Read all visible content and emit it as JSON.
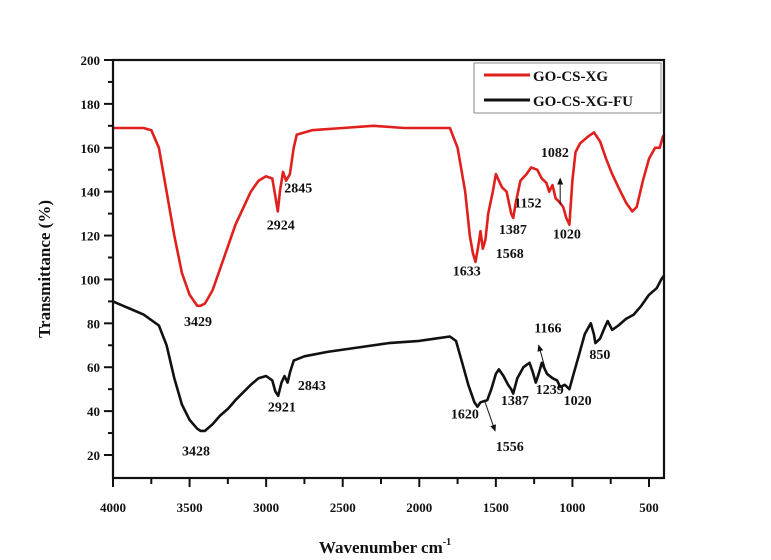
{
  "chart_data": {
    "type": "line",
    "title": "",
    "xlabel": "Wavenumber cm",
    "xlabel_superscript": "-1",
    "ylabel": "Transmittance (%)",
    "xlim": [
      4000,
      400
    ],
    "ylim": [
      10,
      200
    ],
    "x_ticks": [
      4000,
      3500,
      3000,
      2500,
      2000,
      1500,
      1000,
      500
    ],
    "y_ticks": [
      20,
      40,
      60,
      80,
      100,
      120,
      140,
      160,
      180,
      200
    ],
    "grid": false,
    "legend_position": "top-right",
    "series": [
      {
        "name": "GO-CS-XG",
        "color": "#e0201c",
        "x": [
          4000,
          3800,
          3750,
          3700,
          3650,
          3600,
          3550,
          3500,
          3450,
          3429,
          3400,
          3350,
          3300,
          3200,
          3100,
          3050,
          3000,
          2960,
          2940,
          2924,
          2910,
          2890,
          2870,
          2845,
          2820,
          2800,
          2700,
          2500,
          2300,
          2100,
          1900,
          1800,
          1750,
          1700,
          1670,
          1650,
          1633,
          1615,
          1600,
          1585,
          1568,
          1550,
          1520,
          1500,
          1480,
          1460,
          1430,
          1400,
          1387,
          1370,
          1340,
          1300,
          1270,
          1230,
          1200,
          1170,
          1152,
          1130,
          1110,
          1082,
          1060,
          1040,
          1020,
          1000,
          980,
          950,
          900,
          860,
          820,
          780,
          740,
          700,
          650,
          610,
          580,
          540,
          500,
          460,
          430,
          410,
          400
        ],
        "y": [
          169,
          169,
          168,
          160,
          140,
          120,
          103,
          93,
          88,
          88,
          89,
          95,
          105,
          125,
          140,
          145,
          147,
          146,
          138,
          131,
          140,
          149,
          145,
          148,
          160,
          166,
          168,
          169,
          170,
          169,
          169,
          169,
          160,
          140,
          120,
          112,
          108,
          115,
          122,
          114,
          118,
          130,
          140,
          148,
          145,
          142,
          140,
          130,
          128,
          135,
          145,
          148,
          151,
          150,
          146,
          144,
          140,
          143,
          137,
          135,
          133,
          128,
          125,
          145,
          158,
          162,
          165,
          167,
          163,
          155,
          148,
          142,
          135,
          131,
          133,
          145,
          155,
          160,
          160,
          165,
          166
        ]
      },
      {
        "name": "GO-CS-XG-FU",
        "color": "#111111",
        "x": [
          4000,
          3900,
          3800,
          3700,
          3650,
          3600,
          3550,
          3500,
          3450,
          3428,
          3400,
          3350,
          3300,
          3250,
          3200,
          3100,
          3050,
          3000,
          2960,
          2940,
          2921,
          2900,
          2880,
          2860,
          2843,
          2820,
          2750,
          2600,
          2400,
          2200,
          2000,
          1900,
          1800,
          1760,
          1720,
          1680,
          1640,
          1620,
          1600,
          1556,
          1530,
          1500,
          1480,
          1450,
          1420,
          1400,
          1387,
          1360,
          1320,
          1280,
          1260,
          1239,
          1220,
          1200,
          1166,
          1130,
          1100,
          1080,
          1050,
          1020,
          1000,
          960,
          920,
          880,
          860,
          850,
          820,
          790,
          770,
          740,
          700,
          650,
          600,
          550,
          500,
          450,
          420,
          400
        ],
        "y": [
          90,
          87,
          84,
          79,
          70,
          55,
          43,
          36,
          32,
          31,
          31,
          34,
          38,
          41,
          45,
          52,
          55,
          56,
          54,
          49,
          47,
          53,
          56,
          53,
          58,
          63,
          65,
          67,
          69,
          71,
          72,
          73,
          74,
          72,
          62,
          52,
          44,
          42,
          44,
          45,
          50,
          57,
          59,
          56,
          52,
          50,
          48,
          55,
          60,
          62,
          58,
          53,
          57,
          62,
          57,
          55,
          54,
          51,
          52,
          50,
          55,
          65,
          75,
          80,
          75,
          71,
          73,
          78,
          81,
          77,
          79,
          82,
          84,
          88,
          93,
          96,
          100,
          102
        ]
      }
    ],
    "annotations": [
      {
        "text": "3429",
        "x": 3445,
        "y": 81,
        "series": "GO-CS-XG"
      },
      {
        "text": "2924",
        "x": 2905,
        "y": 125,
        "series": "GO-CS-XG"
      },
      {
        "text": "2845",
        "x": 2790,
        "y": 142,
        "series": "GO-CS-XG"
      },
      {
        "text": "1633",
        "x": 1690,
        "y": 104,
        "series": "GO-CS-XG"
      },
      {
        "text": "1568",
        "x": 1409,
        "y": 112,
        "series": "GO-CS-XG"
      },
      {
        "text": "1387",
        "x": 1389,
        "y": 123,
        "series": "GO-CS-XG"
      },
      {
        "text": "1152",
        "x": 1291,
        "y": 135,
        "series": "GO-CS-XG"
      },
      {
        "text": "1082",
        "x": 1115,
        "y": 158,
        "series": "GO-CS-XG",
        "arrow": [
          1080,
          134,
          1080,
          146
        ]
      },
      {
        "text": "1020",
        "x": 1036,
        "y": 121,
        "series": "GO-CS-XG"
      },
      {
        "text": "3428",
        "x": 3458,
        "y": 22,
        "series": "GO-CS-XG-FU"
      },
      {
        "text": "2921",
        "x": 2897,
        "y": 42,
        "series": "GO-CS-XG-FU"
      },
      {
        "text": "2843",
        "x": 2701,
        "y": 52,
        "series": "GO-CS-XG-FU"
      },
      {
        "text": "1620",
        "x": 1702,
        "y": 39,
        "series": "GO-CS-XG-FU"
      },
      {
        "text": "1556",
        "x": 1409,
        "y": 24,
        "series": "GO-CS-XG-FU",
        "arrow": [
          1575,
          45,
          1505,
          31
        ]
      },
      {
        "text": "1387",
        "x": 1376,
        "y": 45,
        "series": "GO-CS-XG-FU"
      },
      {
        "text": "1239",
        "x": 1148,
        "y": 50,
        "series": "GO-CS-XG-FU"
      },
      {
        "text": "1020",
        "x": 966,
        "y": 45,
        "series": "GO-CS-XG-FU"
      },
      {
        "text": "1166",
        "x": 1160,
        "y": 78,
        "series": "GO-CS-XG-FU",
        "arrow": [
          1180,
          60,
          1220,
          70
        ]
      },
      {
        "text": "850",
        "x": 821,
        "y": 66,
        "series": "GO-CS-XG-FU"
      }
    ]
  }
}
